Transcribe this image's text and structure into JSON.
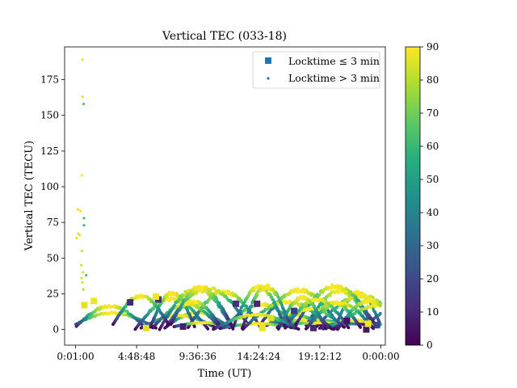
{
  "chart_data": {
    "type": "scatter",
    "title": "Vertical TEC (033-18)",
    "xlabel": "Time (UT)",
    "ylabel": "Vertical TEC (TECU)",
    "xlim": [
      -3100,
      87900
    ],
    "ylim": [
      -11,
      198
    ],
    "x_ticks": [
      {
        "value": 0,
        "label": "0:01:00"
      },
      {
        "value": 17328,
        "label": "4:48:48"
      },
      {
        "value": 34656,
        "label": "9:36:36"
      },
      {
        "value": 51984,
        "label": "14:24:24"
      },
      {
        "value": 69312,
        "label": "19:12:12"
      },
      {
        "value": 86640,
        "label": "0:00:00"
      }
    ],
    "y_ticks": [
      0,
      25,
      50,
      75,
      100,
      125,
      150,
      175
    ],
    "legend": {
      "location": "top-right",
      "entries": [
        {
          "label": "Locktime ≤ 3 min",
          "marker": "square"
        },
        {
          "label": "Locktime > 3 min",
          "marker": "dot"
        }
      ],
      "marker_color": "#1f77b4"
    },
    "colorbar": {
      "colormap": "viridis",
      "range": [
        0,
        90
      ],
      "ticks": [
        0,
        10,
        20,
        30,
        40,
        50,
        60,
        70,
        80,
        90
      ]
    },
    "color_variable": "elevation (color scale 0-90)",
    "series": [
      {
        "marker": "dot",
        "points": [
          {
            "x": 2000,
            "y": 189,
            "c": 88
          },
          {
            "x": 2000,
            "y": 163,
            "c": 86
          },
          {
            "x": 2300,
            "y": 158,
            "c": 66
          },
          {
            "x": 1800,
            "y": 108,
            "c": 89
          },
          {
            "x": 700,
            "y": 84,
            "c": 87
          },
          {
            "x": 1400,
            "y": 83,
            "c": 88
          },
          {
            "x": 2400,
            "y": 78,
            "c": 63
          },
          {
            "x": 2400,
            "y": 73,
            "c": 60
          },
          {
            "x": 800,
            "y": 67,
            "c": 86
          },
          {
            "x": 300,
            "y": 64,
            "c": 85
          },
          {
            "x": 1200,
            "y": 66,
            "c": 88
          },
          {
            "x": 1800,
            "y": 55,
            "c": 84
          },
          {
            "x": 1600,
            "y": 45,
            "c": 85
          },
          {
            "x": 2100,
            "y": 40,
            "c": 86
          },
          {
            "x": 3000,
            "y": 38,
            "c": 65
          },
          {
            "x": 1700,
            "y": 36,
            "c": 84
          },
          {
            "x": 1900,
            "y": 33,
            "c": 84
          },
          {
            "x": 2200,
            "y": 28,
            "c": 80
          }
        ]
      },
      {
        "marker": "square",
        "points": [
          {
            "x": 2500,
            "y": 17,
            "c": 86
          },
          {
            "x": 5200,
            "y": 20,
            "c": 88
          },
          {
            "x": 15500,
            "y": 19,
            "c": 10
          },
          {
            "x": 23500,
            "y": 21,
            "c": 12
          },
          {
            "x": 22800,
            "y": 23,
            "c": 88
          },
          {
            "x": 20000,
            "y": 1,
            "c": 86
          },
          {
            "x": 45500,
            "y": 18,
            "c": 12
          },
          {
            "x": 51500,
            "y": 18,
            "c": 10
          },
          {
            "x": 55500,
            "y": 8,
            "c": 85
          },
          {
            "x": 53000,
            "y": 1,
            "c": 87
          },
          {
            "x": 62000,
            "y": 13,
            "c": 15
          },
          {
            "x": 77000,
            "y": 6,
            "c": 5
          },
          {
            "x": 82500,
            "y": 0,
            "c": 5
          },
          {
            "x": 85500,
            "y": 3,
            "c": 18
          },
          {
            "x": 83000,
            "y": 4,
            "c": 88
          },
          {
            "x": 67500,
            "y": 1,
            "c": 10
          },
          {
            "x": 30500,
            "y": 2,
            "c": 8
          }
        ]
      }
    ]
  }
}
